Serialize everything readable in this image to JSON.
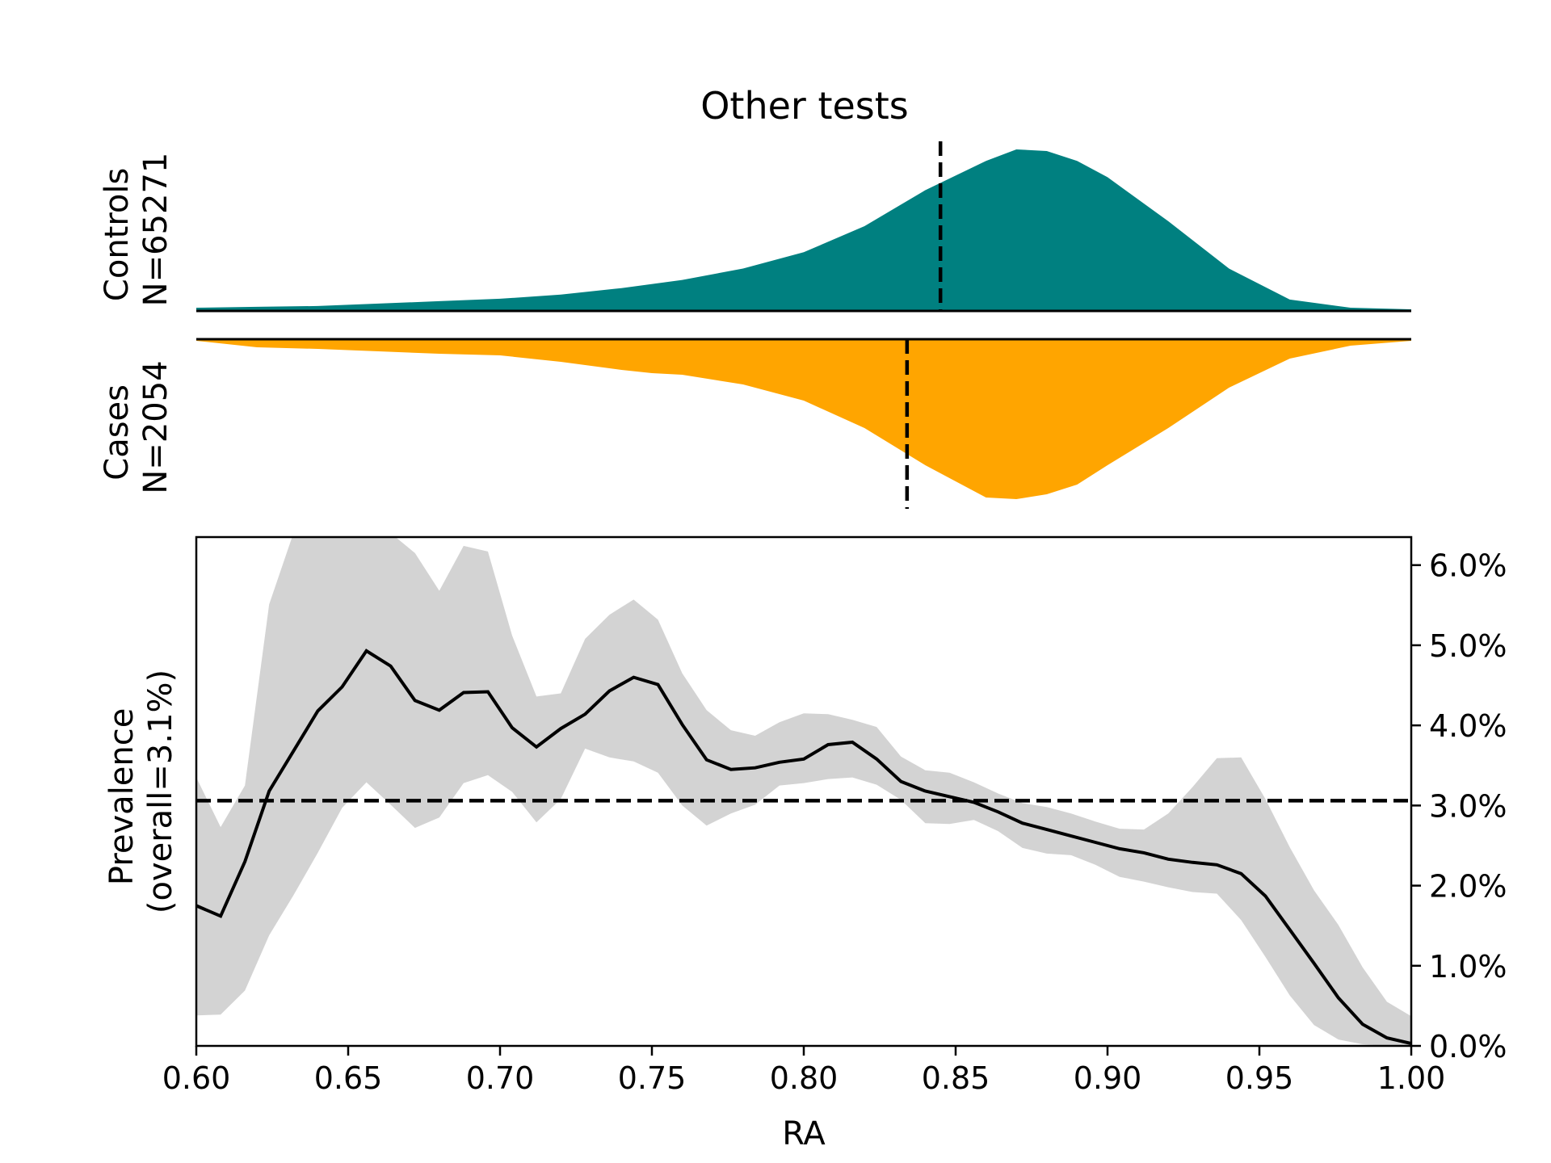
{
  "title": "Other tests",
  "colors": {
    "controls_fill": "#008080",
    "cases_fill": "#FFA500",
    "ci_band": "#d3d3d3",
    "line": "#000000"
  },
  "chart_data": [
    {
      "type": "area",
      "panel": "controls-density",
      "ylabel_line1": "Controls",
      "ylabel_line2": "N=65271",
      "x": [
        0.6,
        0.62,
        0.64,
        0.66,
        0.68,
        0.7,
        0.72,
        0.74,
        0.76,
        0.78,
        0.8,
        0.82,
        0.84,
        0.86,
        0.87,
        0.88,
        0.89,
        0.9,
        0.92,
        0.94,
        0.96,
        0.98,
        1.0
      ],
      "density": [
        0.02,
        0.025,
        0.03,
        0.045,
        0.06,
        0.075,
        0.1,
        0.14,
        0.19,
        0.26,
        0.36,
        0.52,
        0.74,
        0.92,
        0.99,
        0.98,
        0.92,
        0.82,
        0.55,
        0.26,
        0.07,
        0.02,
        0.01
      ],
      "median_line_x": 0.845,
      "direction": "up"
    },
    {
      "type": "area",
      "panel": "cases-density",
      "ylabel_line1": "Cases",
      "ylabel_line2": "N=2054",
      "x": [
        0.6,
        0.62,
        0.64,
        0.66,
        0.68,
        0.7,
        0.72,
        0.74,
        0.75,
        0.76,
        0.78,
        0.8,
        0.82,
        0.84,
        0.86,
        0.87,
        0.88,
        0.89,
        0.9,
        0.92,
        0.94,
        0.96,
        0.98,
        1.0
      ],
      "density": [
        0.01,
        0.05,
        0.06,
        0.075,
        0.09,
        0.1,
        0.14,
        0.19,
        0.21,
        0.22,
        0.28,
        0.38,
        0.55,
        0.78,
        0.98,
        0.99,
        0.96,
        0.9,
        0.78,
        0.55,
        0.3,
        0.12,
        0.04,
        0.01
      ],
      "median_line_x": 0.834,
      "direction": "down"
    },
    {
      "type": "line",
      "panel": "prevalence",
      "xlabel": "RA",
      "ylabel_line1": "Prevalence",
      "ylabel_line2": "(overall=3.1%)",
      "xlim": [
        0.6,
        1.0
      ],
      "ylim": [
        0.0,
        6.35
      ],
      "x_ticks": [
        "0.60",
        "0.65",
        "0.70",
        "0.75",
        "0.80",
        "0.85",
        "0.90",
        "0.95",
        "1.00"
      ],
      "y_ticks": [
        "0.0%",
        "1.0%",
        "2.0%",
        "3.0%",
        "4.0%",
        "5.0%",
        "6.0%"
      ],
      "overall_prevalence": 3.06,
      "x": [
        0.6,
        0.608,
        0.616,
        0.624,
        0.632,
        0.64,
        0.648,
        0.656,
        0.664,
        0.672,
        0.68,
        0.688,
        0.696,
        0.704,
        0.712,
        0.72,
        0.728,
        0.736,
        0.744,
        0.752,
        0.76,
        0.768,
        0.776,
        0.784,
        0.792,
        0.8,
        0.808,
        0.816,
        0.824,
        0.832,
        0.84,
        0.848,
        0.856,
        0.864,
        0.872,
        0.88,
        0.888,
        0.896,
        0.904,
        0.912,
        0.92,
        0.928,
        0.936,
        0.944,
        0.952,
        0.96,
        0.968,
        0.976,
        0.984,
        0.992,
        1.0
      ],
      "prevalence": [
        1.75,
        1.62,
        2.3,
        3.18,
        3.68,
        4.18,
        4.48,
        4.93,
        4.74,
        4.31,
        4.19,
        4.41,
        4.42,
        3.97,
        3.73,
        3.96,
        4.14,
        4.43,
        4.6,
        4.51,
        4.01,
        3.57,
        3.45,
        3.47,
        3.54,
        3.58,
        3.76,
        3.79,
        3.58,
        3.3,
        3.18,
        3.11,
        3.04,
        2.92,
        2.78,
        2.7,
        2.62,
        2.54,
        2.46,
        2.41,
        2.33,
        2.29,
        2.26,
        2.15,
        1.87,
        1.45,
        1.03,
        0.6,
        0.27,
        0.1,
        0.03
      ],
      "ci_upper": [
        3.35,
        2.73,
        3.25,
        5.51,
        6.4,
        6.4,
        6.4,
        6.4,
        6.4,
        6.15,
        5.68,
        6.24,
        6.17,
        5.12,
        4.36,
        4.4,
        5.08,
        5.38,
        5.57,
        5.32,
        4.65,
        4.19,
        3.94,
        3.87,
        4.04,
        4.15,
        4.14,
        4.07,
        3.98,
        3.61,
        3.44,
        3.41,
        3.29,
        3.15,
        3.03,
        2.98,
        2.9,
        2.8,
        2.71,
        2.7,
        2.9,
        3.23,
        3.59,
        3.6,
        3.08,
        2.48,
        1.94,
        1.51,
        0.98,
        0.55,
        0.37
      ],
      "ci_lower": [
        0.38,
        0.39,
        0.69,
        1.38,
        1.88,
        2.41,
        2.97,
        3.29,
        3.01,
        2.72,
        2.85,
        3.28,
        3.38,
        3.17,
        2.79,
        3.08,
        3.71,
        3.6,
        3.55,
        3.41,
        3.0,
        2.75,
        2.9,
        3.01,
        3.25,
        3.28,
        3.33,
        3.35,
        3.26,
        3.07,
        2.78,
        2.77,
        2.82,
        2.68,
        2.47,
        2.4,
        2.38,
        2.26,
        2.11,
        2.05,
        1.98,
        1.92,
        1.9,
        1.57,
        1.11,
        0.63,
        0.26,
        0.08,
        0.02,
        0.0,
        0.0
      ]
    }
  ]
}
